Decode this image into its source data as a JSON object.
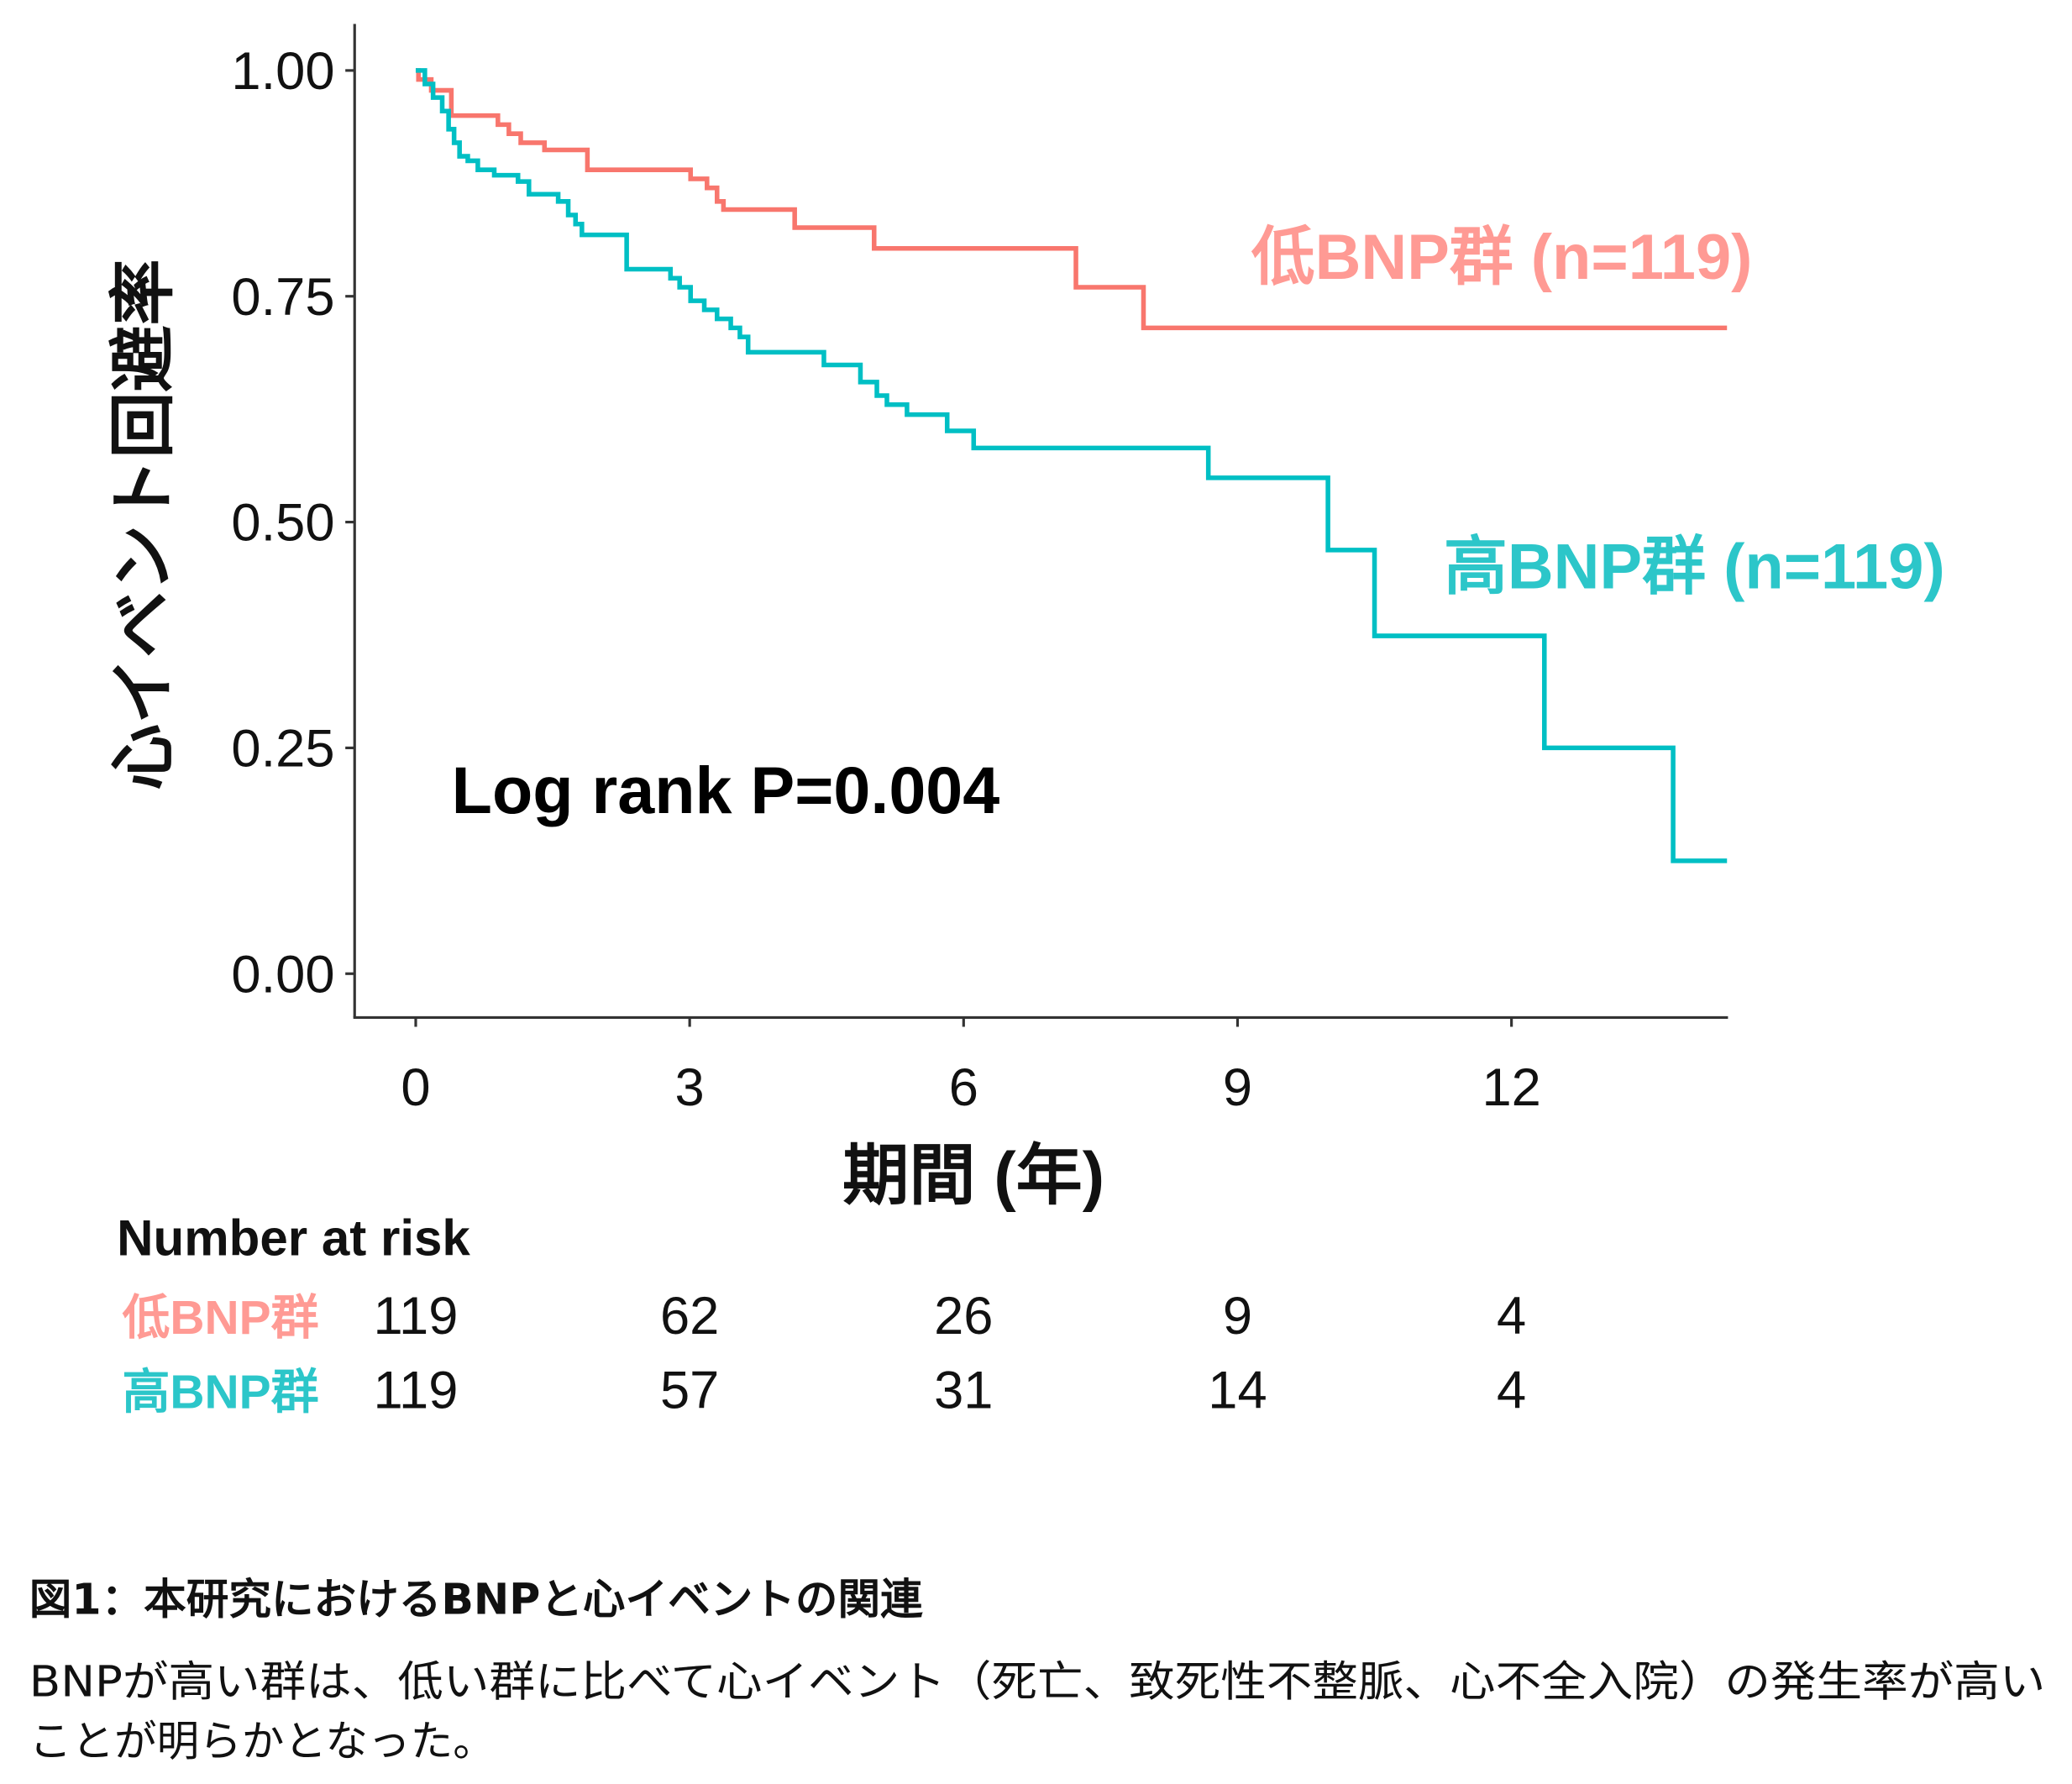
{
  "chart_data": {
    "type": "line",
    "subtype": "kaplan-meier step",
    "xlabel": "期間 (年)",
    "ylabel": "心イベント回避率",
    "xlim": [
      0,
      14.36
    ],
    "ylim": [
      0,
      1
    ],
    "x_ticks": [
      "0",
      "3",
      "6",
      "9",
      "12"
    ],
    "y_ticks": [
      "0.00",
      "0.25",
      "0.50",
      "0.75",
      "1.00"
    ],
    "grid": false,
    "annotation": "Log rank P=0.004",
    "series": [
      {
        "name": "低BNP群 (n=119)",
        "color": "#F8766D",
        "label_color": "#FF9A94",
        "x": [
          0,
          0.03,
          0.17,
          0.39,
          0.9,
          1.02,
          1.15,
          1.41,
          1.88,
          3.01,
          3.19,
          3.3,
          3.37,
          4.15,
          5.02,
          7.23,
          7.97,
          14.36
        ],
        "y": [
          1.0,
          0.99,
          0.978,
          0.95,
          0.94,
          0.93,
          0.92,
          0.912,
          0.89,
          0.88,
          0.87,
          0.855,
          0.846,
          0.826,
          0.803,
          0.76,
          0.715,
          0.715
        ]
      },
      {
        "name": "高BNP群 (n=119)",
        "color": "#00BFC4",
        "label_color": "#2CC6C9",
        "x": [
          0,
          0.1,
          0.19,
          0.29,
          0.36,
          0.42,
          0.48,
          0.57,
          0.68,
          0.86,
          1.12,
          1.24,
          1.56,
          1.67,
          1.75,
          1.82,
          2.31,
          2.79,
          2.89,
          3.01,
          3.16,
          3.3,
          3.45,
          3.55,
          3.64,
          4.47,
          4.87,
          5.05,
          5.16,
          5.38,
          5.82,
          6.11,
          8.68,
          9.99,
          10.5,
          12.36,
          13.77,
          14.36
        ],
        "y": [
          1.0,
          0.985,
          0.97,
          0.955,
          0.935,
          0.92,
          0.905,
          0.9,
          0.89,
          0.884,
          0.877,
          0.863,
          0.855,
          0.84,
          0.83,
          0.818,
          0.78,
          0.77,
          0.76,
          0.745,
          0.735,
          0.725,
          0.715,
          0.705,
          0.688,
          0.674,
          0.655,
          0.64,
          0.63,
          0.619,
          0.601,
          0.582,
          0.549,
          0.469,
          0.374,
          0.25,
          0.125,
          0.125
        ]
      }
    ],
    "risk_table": {
      "title": "Number at risk",
      "rows": [
        {
          "label": "低BNP群",
          "values": [
            "119",
            "62",
            "26",
            "9",
            "4"
          ]
        },
        {
          "label": "高BNP群",
          "values": [
            "119",
            "57",
            "31",
            "14",
            "4"
          ]
        }
      ]
    }
  },
  "caption": {
    "title": "図1：本研究におけるBNPと心イベントの関連",
    "line1": "BNPが高い群は、低い群に比べて心イベント（死亡、致死性不整脈、心不全入院）の発生率が高い",
    "line2": "ことが明らかとなった。"
  }
}
